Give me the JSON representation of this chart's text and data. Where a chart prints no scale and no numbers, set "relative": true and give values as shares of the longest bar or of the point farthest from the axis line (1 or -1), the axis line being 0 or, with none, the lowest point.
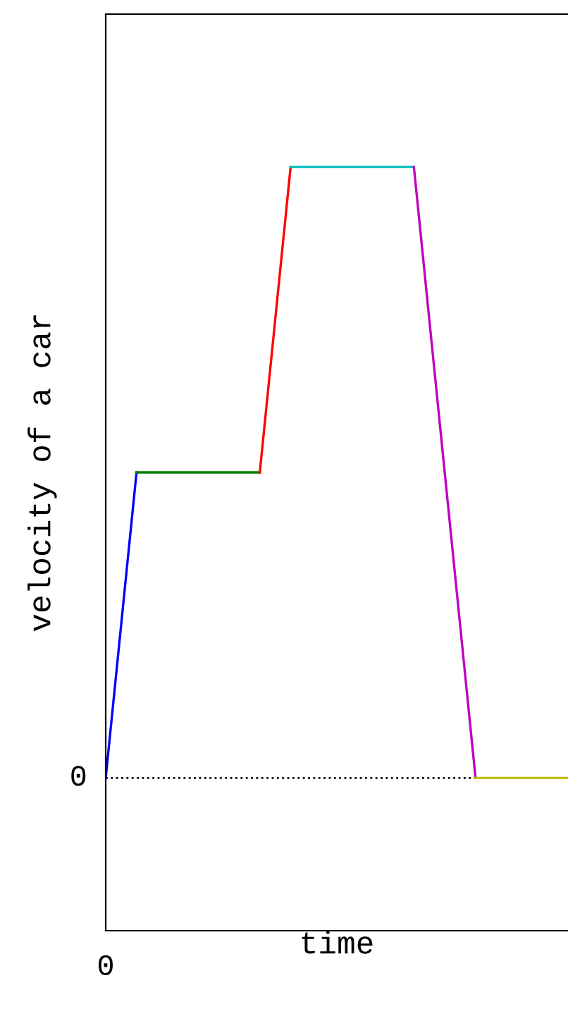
{
  "chart_data": {
    "type": "line",
    "relative": true,
    "xlabel": "time",
    "ylabel": "velocity of a car",
    "annotations": [
      "0"
    ],
    "legend": false,
    "marker": "none",
    "line_style": "solid",
    "categories": [
      null,
      null,
      null,
      null,
      null,
      null,
      null,
      null,
      null,
      null,
      null,
      null,
      null,
      null,
      null,
      null
    ],
    "series": [
      {
        "color": "#0000ff",
        "values": [
          0,
          0.5,
          null,
          null,
          null,
          null,
          null,
          null,
          null,
          null,
          null,
          null,
          null,
          null,
          null,
          null
        ]
      },
      {
        "color": "#008000",
        "values": [
          null,
          0.5,
          0.5,
          0.5,
          0.5,
          0.5,
          null,
          null,
          null,
          null,
          null,
          null,
          null,
          null,
          null,
          null
        ]
      },
      {
        "color": "#ff0000",
        "values": [
          null,
          null,
          null,
          null,
          null,
          0.5,
          1,
          null,
          null,
          null,
          null,
          null,
          null,
          null,
          null,
          null
        ]
      },
      {
        "color": "#00bfbf",
        "values": [
          null,
          null,
          null,
          null,
          null,
          null,
          1,
          1,
          1,
          1,
          1,
          null,
          null,
          null,
          null,
          null
        ]
      },
      {
        "color": "#bf00bf",
        "values": [
          null,
          null,
          null,
          null,
          null,
          null,
          null,
          null,
          null,
          null,
          1,
          0.5,
          0,
          null,
          null,
          null
        ]
      },
      {
        "color": "#bfbf00",
        "values": [
          null,
          null,
          null,
          null,
          null,
          null,
          null,
          null,
          null,
          null,
          null,
          null,
          0,
          0,
          0,
          0
        ]
      }
    ],
    "ref_lines": [
      {
        "axis": "y",
        "value": 0,
        "label": "0",
        "color": "#000000",
        "line_style": "dotted"
      }
    ]
  }
}
